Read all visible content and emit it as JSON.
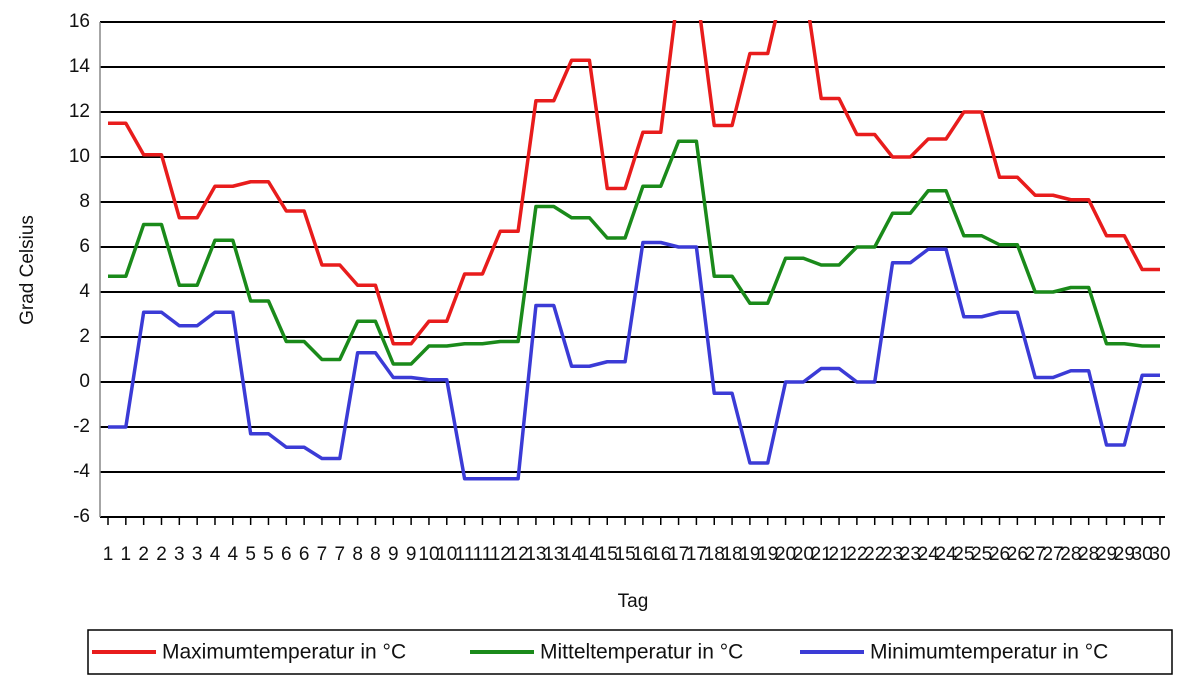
{
  "chart_data": {
    "type": "line",
    "x_label": "Tag",
    "y_label": "Grad Celsius",
    "categories": [
      "1",
      "1",
      "2",
      "2",
      "3",
      "3",
      "4",
      "4",
      "5",
      "5",
      "6",
      "6",
      "7",
      "7",
      "8",
      "8",
      "9",
      "9",
      "10",
      "10",
      "11",
      "11",
      "12",
      "12",
      "13",
      "13",
      "14",
      "14",
      "15",
      "15",
      "16",
      "16",
      "17",
      "17",
      "18",
      "18",
      "19",
      "19",
      "20",
      "20",
      "21",
      "21",
      "22",
      "22",
      "23",
      "23",
      "24",
      "24",
      "25",
      "25",
      "26",
      "26",
      "27",
      "27",
      "28",
      "28",
      "29",
      "29",
      "30",
      "30"
    ],
    "series": [
      {
        "name": "Maximumtemperatur in °C",
        "color": "#e81c1c",
        "values": [
          11.5,
          11.5,
          10.1,
          10.1,
          7.3,
          7.3,
          8.7,
          8.7,
          8.9,
          8.9,
          7.6,
          7.6,
          5.2,
          5.2,
          4.3,
          4.3,
          1.7,
          1.7,
          2.7,
          2.7,
          4.8,
          4.8,
          6.7,
          6.7,
          12.5,
          12.5,
          14.3,
          14.3,
          8.6,
          8.6,
          11.1,
          11.1,
          17.5,
          17.5,
          11.4,
          11.4,
          14.6,
          14.6,
          18,
          18,
          12.6,
          12.6,
          11.0,
          11.0,
          10.0,
          10.0,
          10.8,
          10.8,
          12.0,
          12.0,
          9.1,
          9.1,
          8.3,
          8.3,
          8.1,
          8.1,
          6.5,
          6.5,
          5.0,
          5.0
        ]
      },
      {
        "name": "Mitteltemperatur in °C",
        "color": "#1a8a1a",
        "values": [
          4.7,
          4.7,
          7.0,
          7.0,
          4.3,
          4.3,
          6.3,
          6.3,
          3.6,
          3.6,
          1.8,
          1.8,
          1.0,
          1.0,
          2.7,
          2.7,
          0.8,
          0.8,
          1.6,
          1.6,
          1.7,
          1.7,
          1.8,
          1.8,
          7.8,
          7.8,
          7.3,
          7.3,
          6.4,
          6.4,
          8.7,
          8.7,
          10.7,
          10.7,
          4.7,
          4.7,
          3.5,
          3.5,
          5.5,
          5.5,
          5.2,
          5.2,
          6.0,
          6.0,
          7.5,
          7.5,
          8.5,
          8.5,
          6.5,
          6.5,
          6.1,
          6.1,
          4.0,
          4.0,
          4.2,
          4.2,
          1.7,
          1.7,
          1.6,
          1.6
        ]
      },
      {
        "name": "Minimumtemperatur in °C",
        "color": "#3b3bd6",
        "values": [
          -2,
          -2,
          3.1,
          3.1,
          2.5,
          2.5,
          3.1,
          3.1,
          -2.3,
          -2.3,
          -2.9,
          -2.9,
          -3.4,
          -3.4,
          1.3,
          1.3,
          0.2,
          0.2,
          0.1,
          0.1,
          -4.3,
          -4.3,
          -4.3,
          -4.3,
          3.4,
          3.4,
          0.7,
          0.7,
          0.9,
          0.9,
          6.2,
          6.2,
          6.0,
          6.0,
          -0.5,
          -0.5,
          -3.6,
          -3.6,
          0.0,
          0.0,
          0.6,
          0.6,
          0.0,
          0.0,
          5.3,
          5.3,
          5.9,
          5.9,
          2.9,
          2.9,
          3.1,
          3.1,
          0.2,
          0.2,
          0.5,
          0.5,
          -2.8,
          -2.8,
          0.3,
          0.3
        ]
      }
    ],
    "ylim": [
      -6,
      16
    ],
    "yticks": [
      -6,
      -4,
      -2,
      0,
      2,
      4,
      6,
      8,
      10,
      12,
      14,
      16
    ],
    "grid": true,
    "legend": "bottom"
  }
}
